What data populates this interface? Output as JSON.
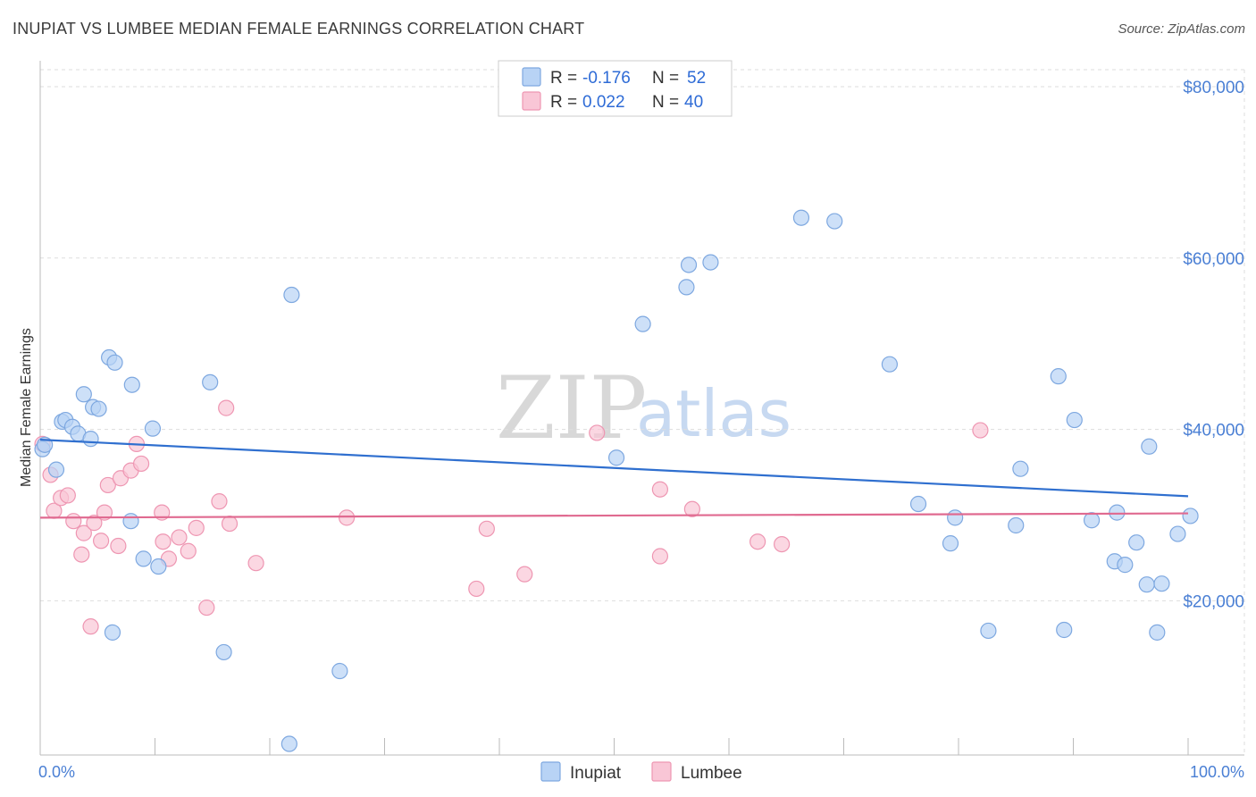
{
  "header": {
    "title": "INUPIAT VS LUMBEE MEDIAN FEMALE EARNINGS CORRELATION CHART",
    "source": "Source: ZipAtlas.com"
  },
  "watermark": {
    "zip": "ZIP",
    "atlas": "atlas"
  },
  "legend": {
    "series": [
      {
        "r_label": "R =",
        "r_value": "-0.176",
        "n_label": "N =",
        "n_value": "52"
      },
      {
        "r_label": "R =",
        "r_value": "0.022",
        "n_label": "N =",
        "n_value": "40"
      }
    ]
  },
  "bottom_legend": [
    "Inupiat",
    "Lumbee"
  ],
  "colors": {
    "inupiat_fill": "#b8d3f5",
    "inupiat_stroke": "#7ea8e0",
    "inupiat_line": "#2f6fcf",
    "lumbee_fill": "#f9c6d6",
    "lumbee_stroke": "#ee96b2",
    "lumbee_line": "#e06a90"
  },
  "chart_data": {
    "type": "scatter",
    "title": "INUPIAT VS LUMBEE MEDIAN FEMALE EARNINGS CORRELATION CHART",
    "xlabel": "",
    "ylabel": "Median Female Earnings",
    "xlim": [
      0,
      100
    ],
    "ylim": [
      0,
      80000
    ],
    "x_tick_labels": [
      "0.0%",
      "100.0%"
    ],
    "y_ticks": [
      20000,
      40000,
      60000,
      80000
    ],
    "y_tick_labels": [
      "$20,000",
      "$40,000",
      "$60,000",
      "$80,000"
    ],
    "grid": true,
    "legend_position": "top-center",
    "series": [
      {
        "name": "Inupiat",
        "r": -0.176,
        "n": 52,
        "trend": {
          "x": [
            0,
            100
          ],
          "y": [
            38800,
            32200
          ]
        },
        "points": [
          [
            0.2,
            37700
          ],
          [
            0.4,
            38200
          ],
          [
            1.4,
            35300
          ],
          [
            1.9,
            40900
          ],
          [
            2.2,
            41100
          ],
          [
            2.8,
            40300
          ],
          [
            3.3,
            39500
          ],
          [
            3.8,
            44100
          ],
          [
            4.4,
            38900
          ],
          [
            4.6,
            42600
          ],
          [
            5.1,
            42400
          ],
          [
            6.0,
            48400
          ],
          [
            6.5,
            47800
          ],
          [
            8.0,
            45200
          ],
          [
            7.9,
            29300
          ],
          [
            9.0,
            24900
          ],
          [
            9.8,
            40100
          ],
          [
            10.3,
            24000
          ],
          [
            6.3,
            16300
          ],
          [
            14.8,
            45500
          ],
          [
            16.0,
            14000
          ],
          [
            21.7,
            3300
          ],
          [
            21.9,
            55700
          ],
          [
            26.1,
            11800
          ],
          [
            50.2,
            36700
          ],
          [
            52.5,
            52300
          ],
          [
            56.3,
            56600
          ],
          [
            56.5,
            59200
          ],
          [
            58.4,
            59500
          ],
          [
            66.3,
            64700
          ],
          [
            69.2,
            64300
          ],
          [
            74.0,
            47600
          ],
          [
            76.5,
            31300
          ],
          [
            79.3,
            26700
          ],
          [
            79.7,
            29700
          ],
          [
            82.6,
            16500
          ],
          [
            85.0,
            28800
          ],
          [
            85.4,
            35400
          ],
          [
            88.7,
            46200
          ],
          [
            89.2,
            16600
          ],
          [
            90.1,
            41100
          ],
          [
            91.6,
            29400
          ],
          [
            93.6,
            24600
          ],
          [
            93.8,
            30300
          ],
          [
            94.5,
            24200
          ],
          [
            95.5,
            26800
          ],
          [
            96.4,
            21900
          ],
          [
            96.6,
            38000
          ],
          [
            97.7,
            22000
          ],
          [
            97.3,
            16300
          ],
          [
            99.1,
            27800
          ],
          [
            100.2,
            29900
          ]
        ]
      },
      {
        "name": "Lumbee",
        "r": 0.022,
        "n": 40,
        "trend": {
          "x": [
            0,
            100
          ],
          "y": [
            29700,
            30200
          ]
        },
        "points": [
          [
            0.2,
            38300
          ],
          [
            0.9,
            34700
          ],
          [
            1.2,
            30500
          ],
          [
            1.8,
            32000
          ],
          [
            2.4,
            32300
          ],
          [
            2.9,
            29300
          ],
          [
            3.6,
            25400
          ],
          [
            3.8,
            27900
          ],
          [
            4.4,
            17000
          ],
          [
            4.7,
            29100
          ],
          [
            5.3,
            27000
          ],
          [
            5.6,
            30300
          ],
          [
            5.9,
            33500
          ],
          [
            6.8,
            26400
          ],
          [
            7.0,
            34300
          ],
          [
            7.9,
            35200
          ],
          [
            8.4,
            38300
          ],
          [
            8.8,
            36000
          ],
          [
            10.6,
            30300
          ],
          [
            10.7,
            26900
          ],
          [
            11.2,
            24900
          ],
          [
            12.1,
            27400
          ],
          [
            12.9,
            25800
          ],
          [
            13.6,
            28500
          ],
          [
            14.5,
            19200
          ],
          [
            15.6,
            31600
          ],
          [
            16.2,
            42500
          ],
          [
            16.5,
            29000
          ],
          [
            18.8,
            24400
          ],
          [
            26.7,
            29700
          ],
          [
            38.0,
            21400
          ],
          [
            38.9,
            28400
          ],
          [
            42.2,
            23100
          ],
          [
            48.5,
            39600
          ],
          [
            54.0,
            33000
          ],
          [
            54.0,
            25200
          ],
          [
            56.8,
            30700
          ],
          [
            62.5,
            26900
          ],
          [
            64.6,
            26600
          ],
          [
            81.9,
            39900
          ]
        ]
      }
    ]
  }
}
